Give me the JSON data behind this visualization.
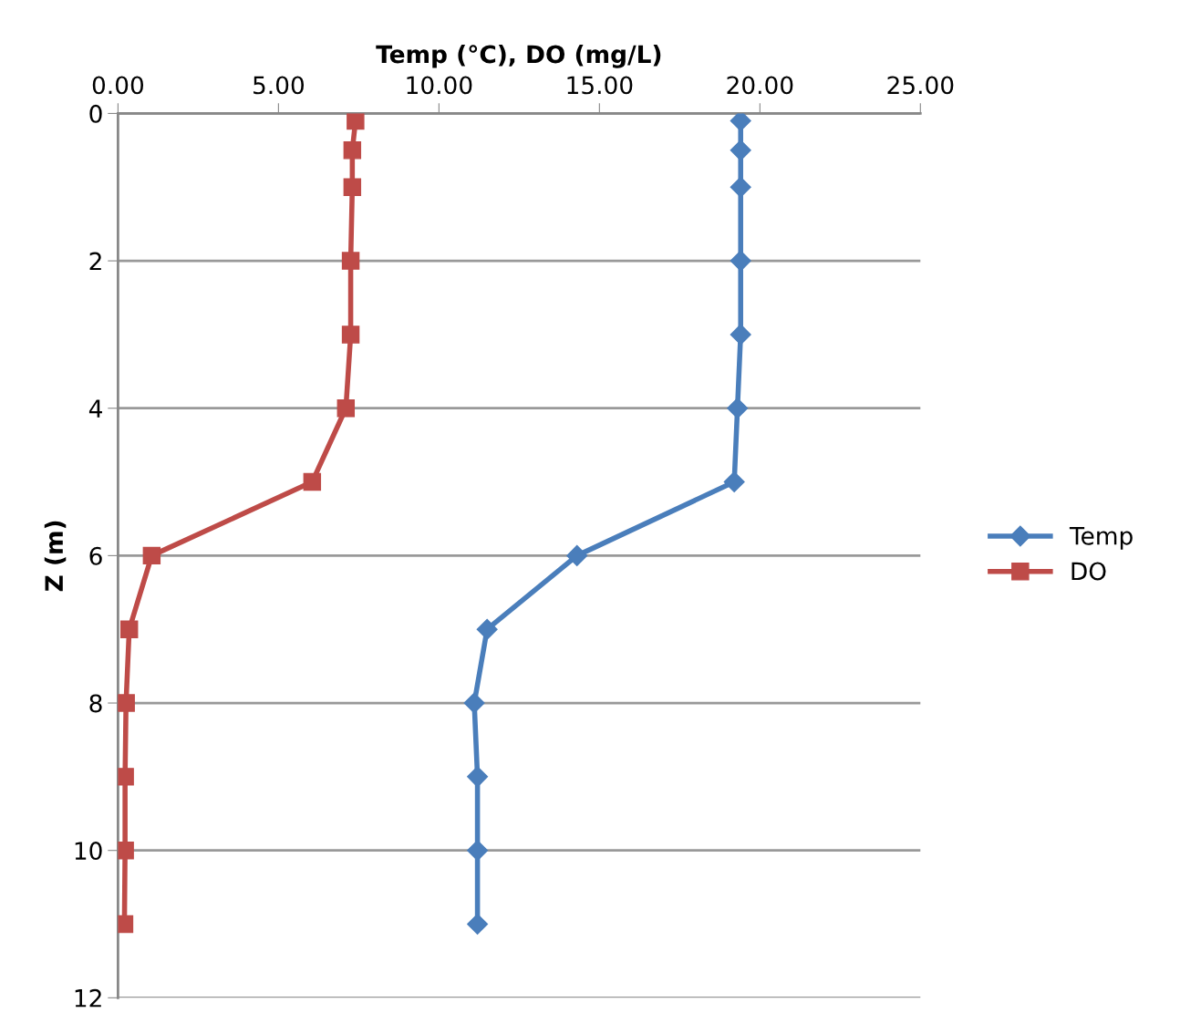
{
  "chart_data": {
    "type": "line",
    "xlabel": "Temp (°C), DO (mg/L)",
    "ylabel": "Z (m)",
    "xlim": [
      0,
      25
    ],
    "xticks": [
      {
        "value": 0,
        "label": "0.00"
      },
      {
        "value": 5,
        "label": "5.00"
      },
      {
        "value": 10,
        "label": "10.00"
      },
      {
        "value": 15,
        "label": "15.00"
      },
      {
        "value": 20,
        "label": "20.00"
      },
      {
        "value": 25,
        "label": "25.00"
      }
    ],
    "ylim": [
      12,
      0
    ],
    "yticks": [
      0,
      2,
      4,
      6,
      8,
      10,
      12
    ],
    "grid": "y",
    "legend": "right",
    "series": [
      {
        "name": "Temp",
        "color": "#4a7ebb",
        "marker": "diamond",
        "x": [
          19.4,
          19.4,
          19.4,
          19.4,
          19.4,
          19.3,
          19.2,
          14.3,
          11.5,
          11.1,
          11.2,
          11.2,
          11.2
        ],
        "values": [
          0.1,
          0.5,
          1,
          2,
          3,
          4,
          5,
          6,
          7,
          8,
          9,
          10,
          11
        ]
      },
      {
        "name": "DO",
        "color": "#be4b48",
        "marker": "square",
        "x": [
          7.4,
          7.3,
          7.3,
          7.25,
          7.25,
          7.1,
          6.05,
          1.05,
          0.35,
          0.25,
          0.22,
          0.22,
          0.2
        ],
        "values": [
          0.1,
          0.5,
          1,
          2,
          3,
          4,
          5,
          6,
          7,
          8,
          9,
          10,
          11
        ]
      }
    ]
  }
}
